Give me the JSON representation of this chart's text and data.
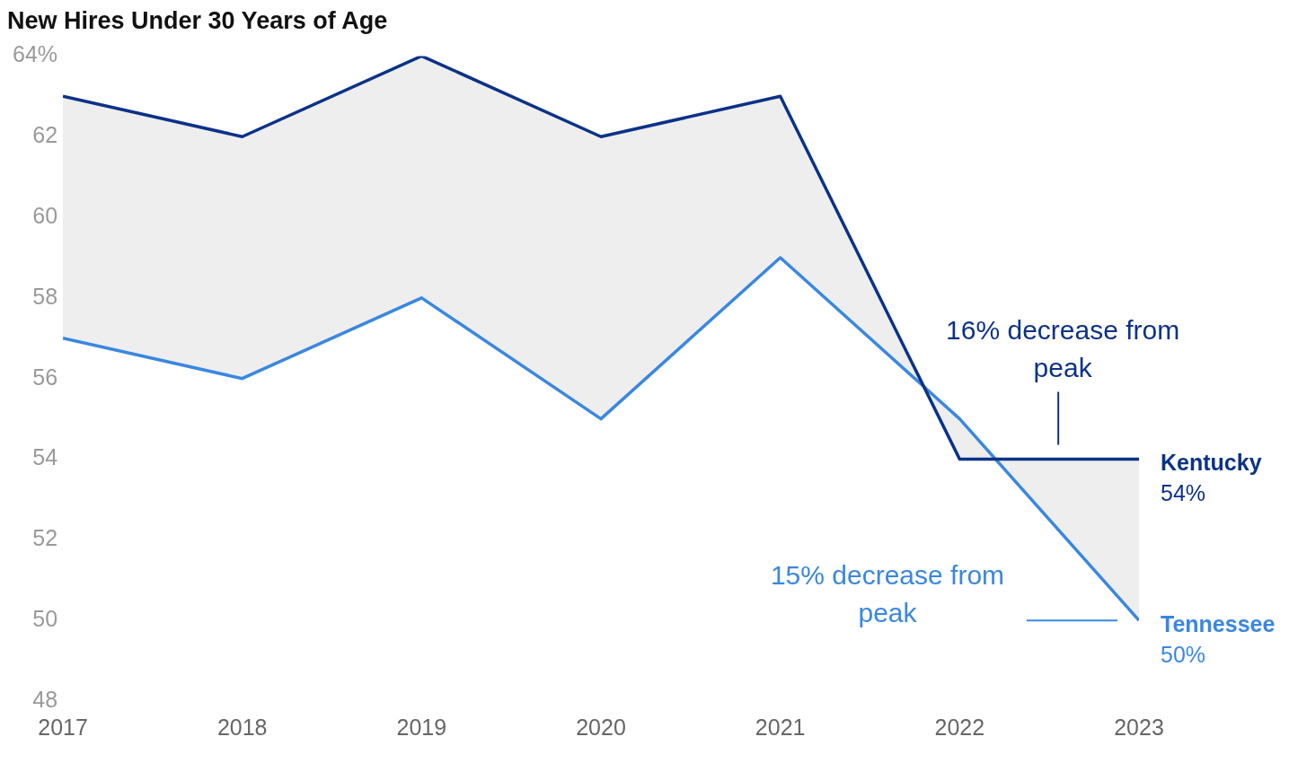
{
  "chart_data": {
    "type": "line",
    "title": "New Hires Under 30 Years of Age",
    "x": [
      2017,
      2018,
      2019,
      2020,
      2021,
      2022,
      2023
    ],
    "xlim": [
      2017,
      2023
    ],
    "xticks": [
      2017,
      2018,
      2019,
      2020,
      2021,
      2022,
      2023
    ],
    "ylim": [
      48,
      64
    ],
    "yticks": [
      48,
      50,
      52,
      54,
      56,
      58,
      60,
      62,
      {
        "value": 64,
        "label": "64%"
      }
    ],
    "grid": false,
    "legend": "right",
    "marker": "none",
    "line_style": "solid",
    "series": [
      {
        "name": "Kentucky",
        "color": "#0b3288",
        "values": [
          63,
          62,
          64,
          62,
          63,
          54,
          54
        ],
        "value_labels": [
          null,
          null,
          null,
          null,
          null,
          null,
          "54%"
        ],
        "upper": [
          63,
          62,
          64,
          62,
          63,
          54,
          54
        ],
        "lower": [
          57,
          56,
          58,
          55,
          59,
          55,
          50
        ]
      },
      {
        "name": "Tennessee",
        "color": "#3a87e0",
        "values": [
          57,
          56,
          58,
          55,
          59,
          55,
          50
        ],
        "value_labels": [
          null,
          null,
          null,
          null,
          null,
          null,
          "50%"
        ]
      }
    ],
    "annotations": [
      {
        "text": "16% decrease from peak",
        "x": 2022.55,
        "y": 54
      },
      "15% decrease from peak"
    ]
  }
}
